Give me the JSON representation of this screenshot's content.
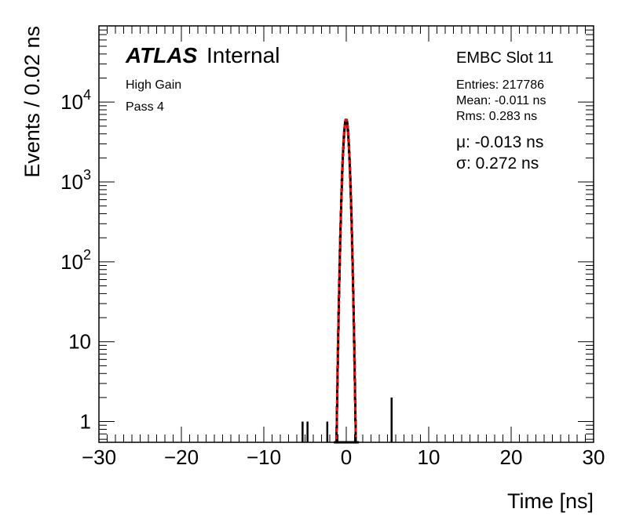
{
  "chart_data": {
    "type": "histogram",
    "xlabel": "Time [ns]",
    "ylabel": "Events / 0.02 ns",
    "xlim": [
      -30,
      30
    ],
    "ylim": [
      0.55,
      90000
    ],
    "yscale": "log",
    "x_ticks": [
      -30,
      -20,
      -10,
      0,
      10,
      20,
      30
    ],
    "x_tick_labels": [
      "−30",
      "−20",
      "−10",
      "0",
      "10",
      "20",
      "30"
    ],
    "y_ticks": [
      1,
      10,
      100,
      1000,
      10000
    ],
    "y_tick_labels": [
      {
        "base": "1",
        "exp": ""
      },
      {
        "base": "10",
        "exp": ""
      },
      {
        "base": "10",
        "exp": "2"
      },
      {
        "base": "10",
        "exp": "3"
      },
      {
        "base": "10",
        "exp": "4"
      }
    ],
    "atlas_label": "ATLAS",
    "atlas_sublabel": "Internal",
    "annotations": {
      "gain": "High Gain",
      "pass": "Pass 4",
      "slot": "EMBC Slot 11",
      "entries": "Entries: 217786",
      "mean": "Mean: -0.011 ns",
      "rms": "Rms: 0.283 ns",
      "fit_mu": "μ: -0.013 ns",
      "fit_sigma": "σ: 0.272 ns"
    },
    "fit": {
      "type": "gaussian",
      "mu": -0.013,
      "sigma": 0.272,
      "amplitude": 6000,
      "x_range": [
        -1.3,
        1.3
      ]
    },
    "outlier_bins": [
      {
        "x": -5.3,
        "y": 1
      },
      {
        "x": -4.7,
        "y": 1
      },
      {
        "x": -2.3,
        "y": 1
      },
      {
        "x": 5.5,
        "y": 2
      }
    ],
    "colors": {
      "histogram": "#000000",
      "fit": "#ff0000"
    }
  }
}
